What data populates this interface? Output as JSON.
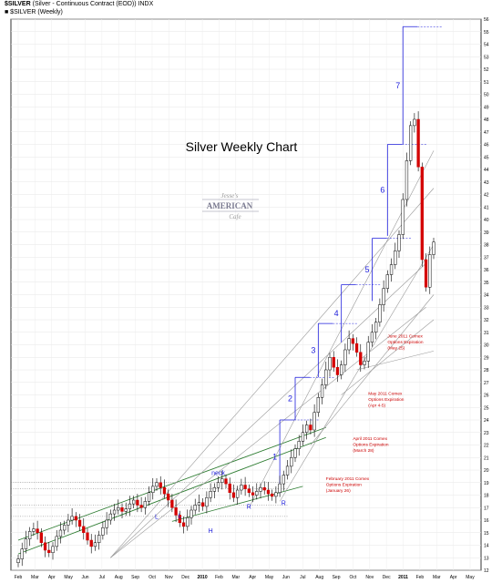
{
  "header": {
    "symbol": "$SILVER",
    "description": "(Silver - Continuous Contract (EOD)) INDX",
    "series_label": "■ $SILVER (Weekly)"
  },
  "chart_data": {
    "type": "candlestick",
    "title": "Silver Weekly Chart",
    "logo_text": [
      "Jesse's",
      "AMERICAN",
      "Cafe"
    ],
    "ylim": [
      12,
      56
    ],
    "y_ticks": [
      12,
      13,
      14,
      15,
      16,
      17,
      18,
      19,
      20,
      21,
      22,
      23,
      24,
      25,
      26,
      27,
      28,
      29,
      30,
      31,
      32,
      33,
      34,
      35,
      36,
      37,
      38,
      39,
      40,
      41,
      42,
      43,
      44,
      45,
      46,
      47,
      48,
      49,
      50,
      51,
      52,
      53,
      54,
      55,
      56
    ],
    "x_tick_labels": [
      "Feb",
      "Mar",
      "Apr",
      "May",
      "Jun",
      "Jul",
      "Aug",
      "Sep",
      "Oct",
      "Nov",
      "Dec",
      "2010",
      "Feb",
      "Mar",
      "Apr",
      "May",
      "Jun",
      "Jul",
      "Aug",
      "Sep",
      "Oct",
      "Nov",
      "Dec",
      "2011",
      "Feb",
      "Mar",
      "Apr",
      "May"
    ],
    "closes": [
      12.9,
      13.7,
      14.5,
      15.1,
      15.3,
      15.0,
      14.2,
      13.6,
      13.4,
      13.9,
      14.7,
      15.2,
      15.6,
      16.0,
      16.3,
      16.0,
      15.5,
      15.0,
      14.4,
      13.9,
      14.2,
      14.8,
      15.4,
      16.0,
      16.5,
      16.8,
      17.0,
      16.7,
      16.9,
      17.3,
      17.6,
      17.2,
      17.0,
      17.5,
      18.2,
      18.7,
      19.0,
      18.6,
      18.1,
      17.6,
      17.0,
      16.4,
      15.8,
      15.5,
      16.2,
      16.8,
      17.2,
      17.4,
      17.1,
      17.8,
      18.3,
      18.6,
      19.0,
      19.3,
      18.9,
      18.2,
      17.8,
      18.4,
      18.8,
      18.5,
      18.2,
      18.0,
      18.3,
      18.6,
      18.4,
      18.1,
      17.9,
      18.2,
      18.9,
      19.6,
      20.3,
      21.0,
      21.7,
      22.3,
      23.0,
      23.6,
      23.2,
      24.6,
      25.8,
      26.8,
      28.0,
      29.0,
      28.2,
      27.6,
      28.4,
      29.6,
      30.5,
      30.1,
      29.4,
      28.4,
      28.7,
      30.2,
      31.0,
      31.8,
      33.2,
      34.5,
      35.6,
      36.4,
      37.5,
      38.8,
      41.6,
      44.7,
      47.5,
      48.0,
      44.2,
      36.8,
      34.6,
      37.2,
      38.2
    ],
    "wave_labels": [
      "1",
      "2",
      "3",
      "4",
      "5",
      "6",
      "7"
    ],
    "pattern_labels": [
      "neck",
      "L",
      "L",
      "H",
      "R",
      "R"
    ],
    "annotations": [
      [
        "February 2011 Comex",
        "Options Expiration",
        "(January 26)"
      ],
      [
        "April 2011 Comex",
        "Options Expiration",
        "(March 28)"
      ],
      [
        "May 2011 Comex",
        "Options Expiration",
        "(Apr 4-5)"
      ],
      [
        "June 2011 Comex",
        "Options Expiration",
        "(May 25)"
      ]
    ],
    "colors": {
      "up": "#ffffff",
      "down": "#d40000",
      "wave": "#1e1edc",
      "trend": "#2e7d32",
      "annotation": "#cc0000"
    }
  }
}
